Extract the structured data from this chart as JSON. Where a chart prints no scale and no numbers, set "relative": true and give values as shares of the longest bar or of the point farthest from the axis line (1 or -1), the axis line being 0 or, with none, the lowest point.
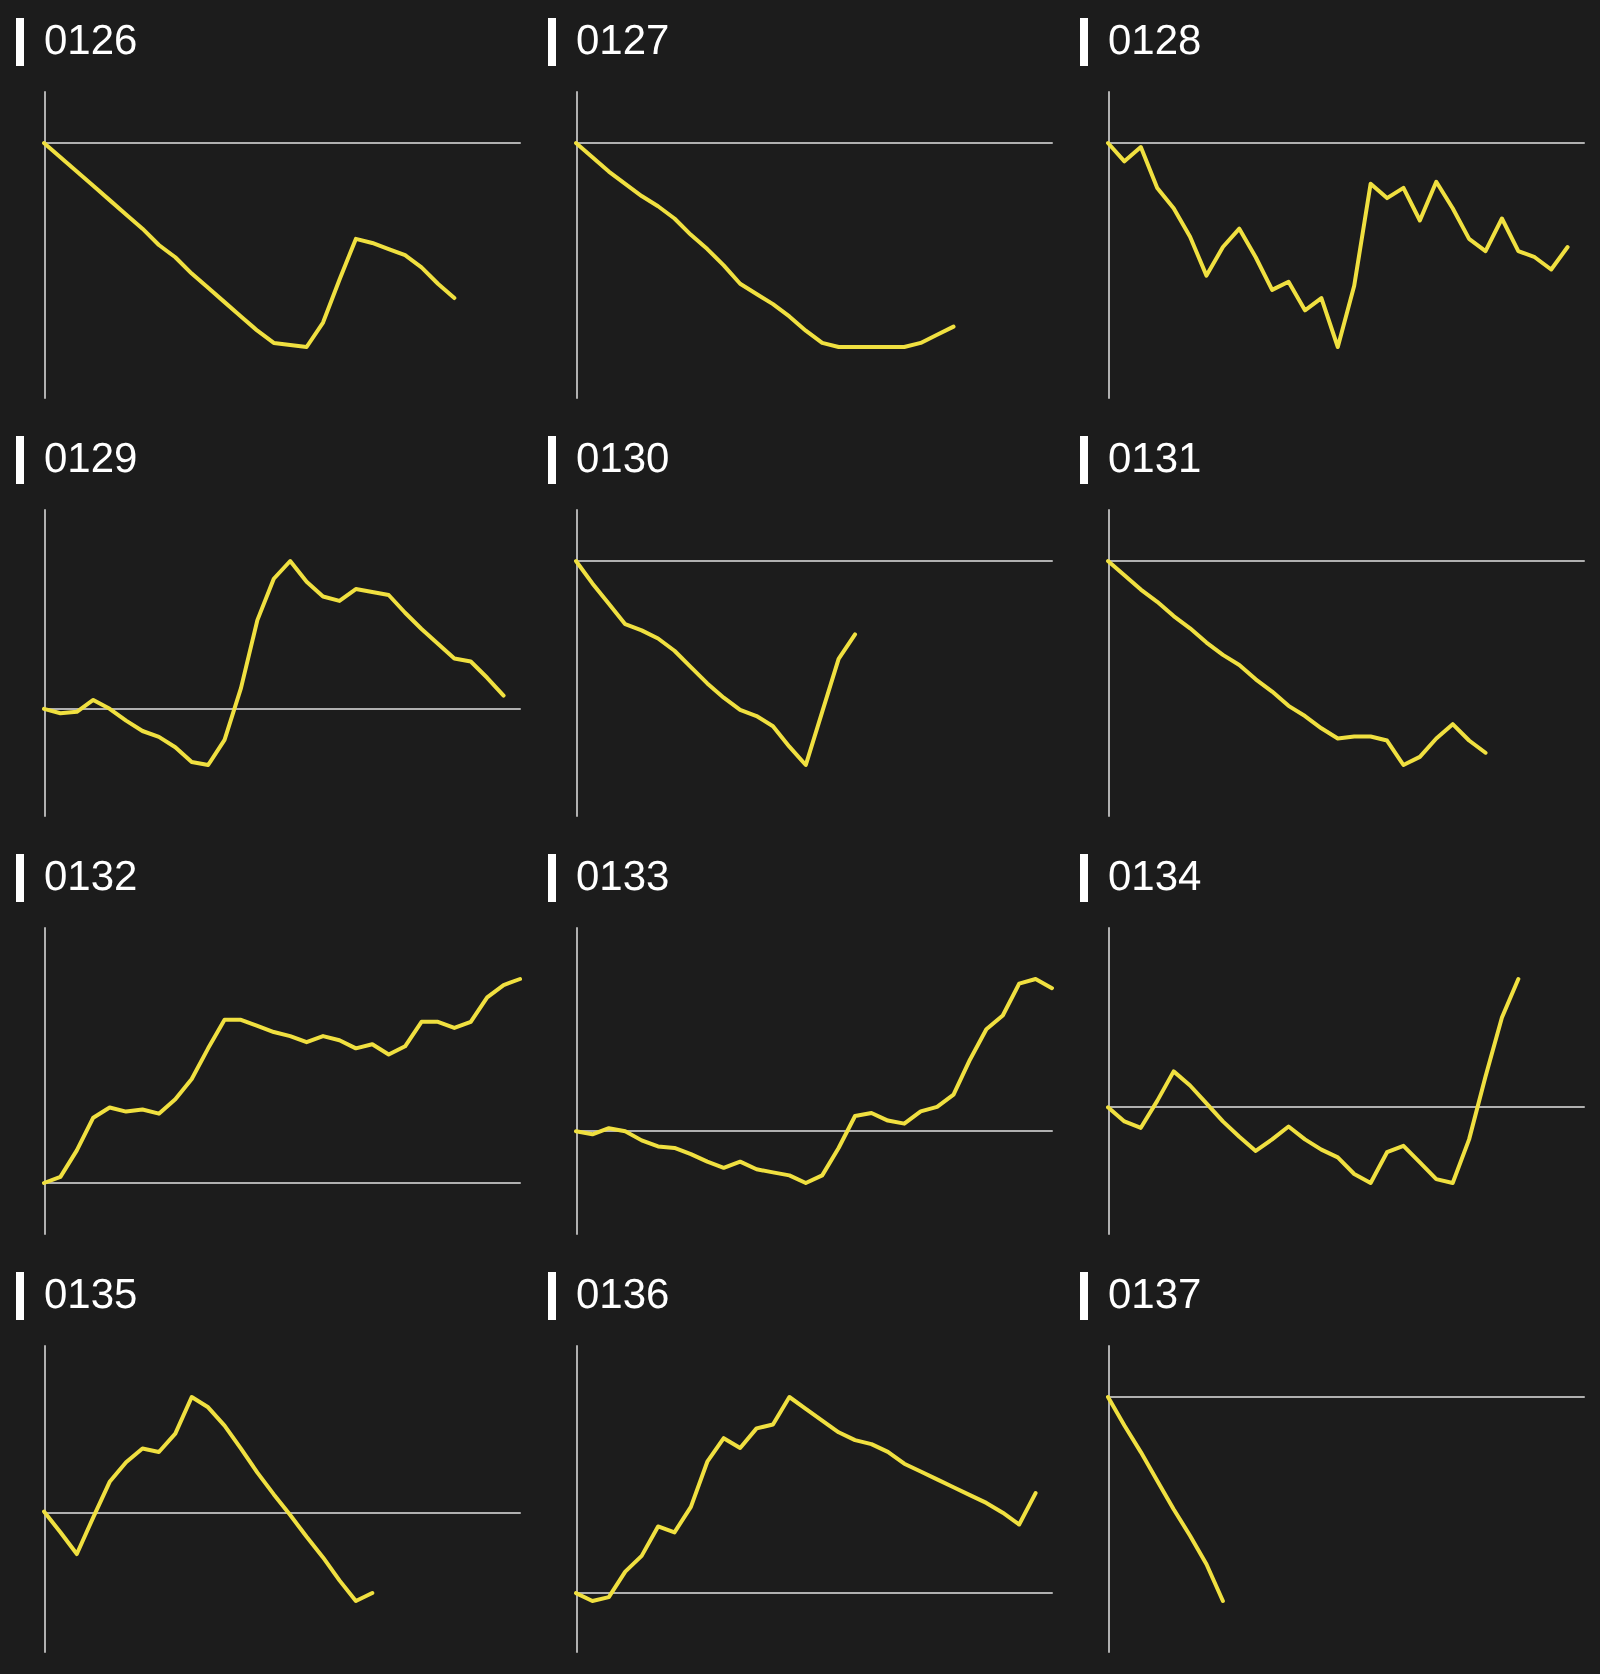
{
  "chart_data": [
    {
      "type": "line",
      "title": "0126",
      "relative": true,
      "line_style": "solid",
      "categories": [
        null,
        null,
        null,
        null,
        null,
        null,
        null,
        null,
        null,
        null,
        null,
        null,
        null,
        null,
        null,
        null,
        null,
        null,
        null,
        null,
        null,
        null,
        null,
        null,
        null,
        null,
        null,
        null,
        null,
        null
      ],
      "series": [
        {
          "color": "#f0e040",
          "values": [
            0,
            -0.07,
            -0.14,
            -0.21,
            -0.28,
            -0.35,
            -0.42,
            -0.5,
            -0.56,
            -0.64,
            -0.71,
            -0.78,
            -0.85,
            -0.92,
            -0.98,
            -0.99,
            -1,
            -0.88,
            -0.67,
            -0.47,
            -0.49,
            -0.52,
            -0.55,
            -0.61,
            -0.69,
            -0.76,
            null,
            null,
            null,
            null
          ]
        }
      ]
    },
    {
      "type": "line",
      "title": "0127",
      "relative": true,
      "line_style": "solid",
      "categories": [
        null,
        null,
        null,
        null,
        null,
        null,
        null,
        null,
        null,
        null,
        null,
        null,
        null,
        null,
        null,
        null,
        null,
        null,
        null,
        null,
        null,
        null,
        null,
        null,
        null,
        null,
        null,
        null,
        null,
        null
      ],
      "series": [
        {
          "color": "#f0e040",
          "values": [
            0,
            -0.07,
            -0.14,
            -0.2,
            -0.26,
            -0.31,
            -0.37,
            -0.45,
            -0.52,
            -0.6,
            -0.69,
            -0.74,
            -0.79,
            -0.85,
            -0.92,
            -0.98,
            -1,
            -1,
            -1,
            -1,
            -1,
            -0.98,
            -0.94,
            -0.9,
            null,
            null,
            null,
            null,
            null,
            null
          ]
        }
      ]
    },
    {
      "type": "line",
      "title": "0128",
      "relative": true,
      "line_style": "solid",
      "categories": [
        null,
        null,
        null,
        null,
        null,
        null,
        null,
        null,
        null,
        null,
        null,
        null,
        null,
        null,
        null,
        null,
        null,
        null,
        null,
        null,
        null,
        null,
        null,
        null,
        null,
        null,
        null,
        null,
        null,
        null
      ],
      "series": [
        {
          "color": "#f0e040",
          "values": [
            0,
            -0.09,
            -0.02,
            -0.22,
            -0.32,
            -0.46,
            -0.65,
            -0.51,
            -0.42,
            -0.56,
            -0.72,
            -0.68,
            -0.82,
            -0.76,
            -1,
            -0.7,
            -0.2,
            -0.27,
            -0.22,
            -0.38,
            -0.19,
            -0.32,
            -0.47,
            -0.53,
            -0.37,
            -0.53,
            -0.56,
            -0.62,
            -0.51,
            null
          ]
        }
      ]
    },
    {
      "type": "line",
      "title": "0129",
      "relative": true,
      "line_style": "solid",
      "categories": [
        null,
        null,
        null,
        null,
        null,
        null,
        null,
        null,
        null,
        null,
        null,
        null,
        null,
        null,
        null,
        null,
        null,
        null,
        null,
        null,
        null,
        null,
        null,
        null,
        null,
        null,
        null,
        null,
        null,
        null
      ],
      "series": [
        {
          "color": "#f0e040",
          "values": [
            0,
            -0.03,
            -0.02,
            0.06,
            0,
            -0.08,
            -0.15,
            -0.19,
            -0.26,
            -0.36,
            -0.38,
            -0.21,
            0.14,
            0.6,
            0.88,
            1,
            0.86,
            0.76,
            0.73,
            0.81,
            0.79,
            0.77,
            0.65,
            0.54,
            0.44,
            0.34,
            0.32,
            0.21,
            0.09,
            null
          ]
        }
      ]
    },
    {
      "type": "line",
      "title": "0130",
      "relative": true,
      "line_style": "solid",
      "categories": [
        null,
        null,
        null,
        null,
        null,
        null,
        null,
        null,
        null,
        null,
        null,
        null,
        null,
        null,
        null,
        null,
        null,
        null,
        null,
        null,
        null,
        null,
        null,
        null,
        null,
        null,
        null,
        null,
        null,
        null
      ],
      "series": [
        {
          "color": "#f0e040",
          "values": [
            0,
            -0.11,
            -0.21,
            -0.31,
            -0.34,
            -0.38,
            -0.44,
            -0.52,
            -0.6,
            -0.67,
            -0.73,
            -0.76,
            -0.81,
            -0.91,
            -1,
            -0.74,
            -0.48,
            -0.36,
            null,
            null,
            null,
            null,
            null,
            null,
            null,
            null,
            null,
            null,
            null,
            null
          ]
        }
      ]
    },
    {
      "type": "line",
      "title": "0131",
      "relative": true,
      "line_style": "solid",
      "categories": [
        null,
        null,
        null,
        null,
        null,
        null,
        null,
        null,
        null,
        null,
        null,
        null,
        null,
        null,
        null,
        null,
        null,
        null,
        null,
        null,
        null,
        null,
        null,
        null,
        null,
        null,
        null,
        null,
        null,
        null
      ],
      "series": [
        {
          "color": "#f0e040",
          "values": [
            0,
            -0.07,
            -0.14,
            -0.2,
            -0.27,
            -0.33,
            -0.4,
            -0.46,
            -0.51,
            -0.58,
            -0.64,
            -0.71,
            -0.76,
            -0.82,
            -0.87,
            -0.86,
            -0.86,
            -0.88,
            -1,
            -0.96,
            -0.87,
            -0.8,
            -0.88,
            -0.94,
            null,
            null,
            null,
            null,
            null,
            null
          ]
        }
      ]
    },
    {
      "type": "line",
      "title": "0132",
      "relative": true,
      "line_style": "solid",
      "categories": [
        null,
        null,
        null,
        null,
        null,
        null,
        null,
        null,
        null,
        null,
        null,
        null,
        null,
        null,
        null,
        null,
        null,
        null,
        null,
        null,
        null,
        null,
        null,
        null,
        null,
        null,
        null,
        null,
        null,
        null
      ],
      "series": [
        {
          "color": "#f0e040",
          "values": [
            0,
            0.03,
            0.16,
            0.32,
            0.37,
            0.35,
            0.36,
            0.34,
            0.41,
            0.51,
            0.66,
            0.8,
            0.8,
            0.77,
            0.74,
            0.72,
            0.69,
            0.72,
            0.7,
            0.66,
            0.68,
            0.63,
            0.67,
            0.79,
            0.79,
            0.76,
            0.79,
            0.91,
            0.97,
            1
          ]
        }
      ]
    },
    {
      "type": "line",
      "title": "0133",
      "relative": true,
      "line_style": "solid",
      "categories": [
        null,
        null,
        null,
        null,
        null,
        null,
        null,
        null,
        null,
        null,
        null,
        null,
        null,
        null,
        null,
        null,
        null,
        null,
        null,
        null,
        null,
        null,
        null,
        null,
        null,
        null,
        null,
        null,
        null,
        null
      ],
      "series": [
        {
          "color": "#f0e040",
          "values": [
            0,
            -0.02,
            0.02,
            0,
            -0.06,
            -0.1,
            -0.11,
            -0.15,
            -0.2,
            -0.24,
            -0.2,
            -0.25,
            -0.27,
            -0.29,
            -0.34,
            -0.29,
            -0.11,
            0.1,
            0.12,
            0.07,
            0.05,
            0.13,
            0.16,
            0.24,
            0.47,
            0.67,
            0.76,
            0.97,
            1,
            0.94
          ]
        }
      ]
    },
    {
      "type": "line",
      "title": "0134",
      "relative": true,
      "line_style": "solid",
      "categories": [
        null,
        null,
        null,
        null,
        null,
        null,
        null,
        null,
        null,
        null,
        null,
        null,
        null,
        null,
        null,
        null,
        null,
        null,
        null,
        null,
        null,
        null,
        null,
        null,
        null,
        null,
        null,
        null,
        null,
        null
      ],
      "series": [
        {
          "color": "#f0e040",
          "values": [
            0,
            -0.11,
            -0.16,
            0.05,
            0.28,
            0.17,
            0.03,
            -0.11,
            -0.23,
            -0.34,
            -0.25,
            -0.15,
            -0.25,
            -0.33,
            -0.39,
            -0.52,
            -0.59,
            -0.35,
            -0.3,
            -0.43,
            -0.56,
            -0.59,
            -0.25,
            0.24,
            0.7,
            1,
            null,
            null,
            null,
            null
          ]
        }
      ]
    },
    {
      "type": "line",
      "title": "0135",
      "relative": true,
      "line_style": "solid",
      "categories": [
        null,
        null,
        null,
        null,
        null,
        null,
        null,
        null,
        null,
        null,
        null,
        null,
        null,
        null,
        null,
        null,
        null,
        null,
        null,
        null,
        null,
        null,
        null,
        null,
        null,
        null,
        null,
        null,
        null,
        null
      ],
      "series": [
        {
          "color": "#f0e040",
          "values": [
            0,
            -0.18,
            -0.37,
            -0.05,
            0.26,
            0.43,
            0.55,
            0.52,
            0.68,
            1,
            0.91,
            0.75,
            0.55,
            0.34,
            0.15,
            -0.03,
            -0.22,
            -0.4,
            -0.6,
            -0.78,
            -0.71,
            null,
            null,
            null,
            null,
            null,
            null,
            null,
            null,
            null
          ]
        }
      ]
    },
    {
      "type": "line",
      "title": "0136",
      "relative": true,
      "line_style": "solid",
      "categories": [
        null,
        null,
        null,
        null,
        null,
        null,
        null,
        null,
        null,
        null,
        null,
        null,
        null,
        null,
        null,
        null,
        null,
        null,
        null,
        null,
        null,
        null,
        null,
        null,
        null,
        null,
        null,
        null,
        null,
        null
      ],
      "series": [
        {
          "color": "#f0e040",
          "values": [
            0,
            -0.04,
            -0.02,
            0.11,
            0.19,
            0.34,
            0.31,
            0.44,
            0.67,
            0.79,
            0.74,
            0.84,
            0.86,
            1,
            0.94,
            0.88,
            0.82,
            0.78,
            0.76,
            0.72,
            0.66,
            0.62,
            0.58,
            0.54,
            0.5,
            0.46,
            0.41,
            0.35,
            0.51,
            null
          ]
        }
      ]
    },
    {
      "type": "line",
      "title": "0137",
      "relative": true,
      "line_style": "solid",
      "categories": [
        null,
        null,
        null,
        null,
        null,
        null,
        null,
        null,
        null,
        null,
        null,
        null,
        null,
        null,
        null,
        null,
        null,
        null,
        null,
        null,
        null,
        null,
        null,
        null,
        null,
        null,
        null,
        null,
        null,
        null
      ],
      "series": [
        {
          "color": "#f0e040",
          "values": [
            0,
            -0.14,
            -0.27,
            -0.41,
            -0.55,
            -0.68,
            -0.82,
            -1,
            null,
            null,
            null,
            null,
            null,
            null,
            null,
            null,
            null,
            null,
            null,
            null,
            null,
            null,
            null,
            null,
            null,
            null,
            null,
            null,
            null,
            null
          ]
        }
      ]
    }
  ]
}
